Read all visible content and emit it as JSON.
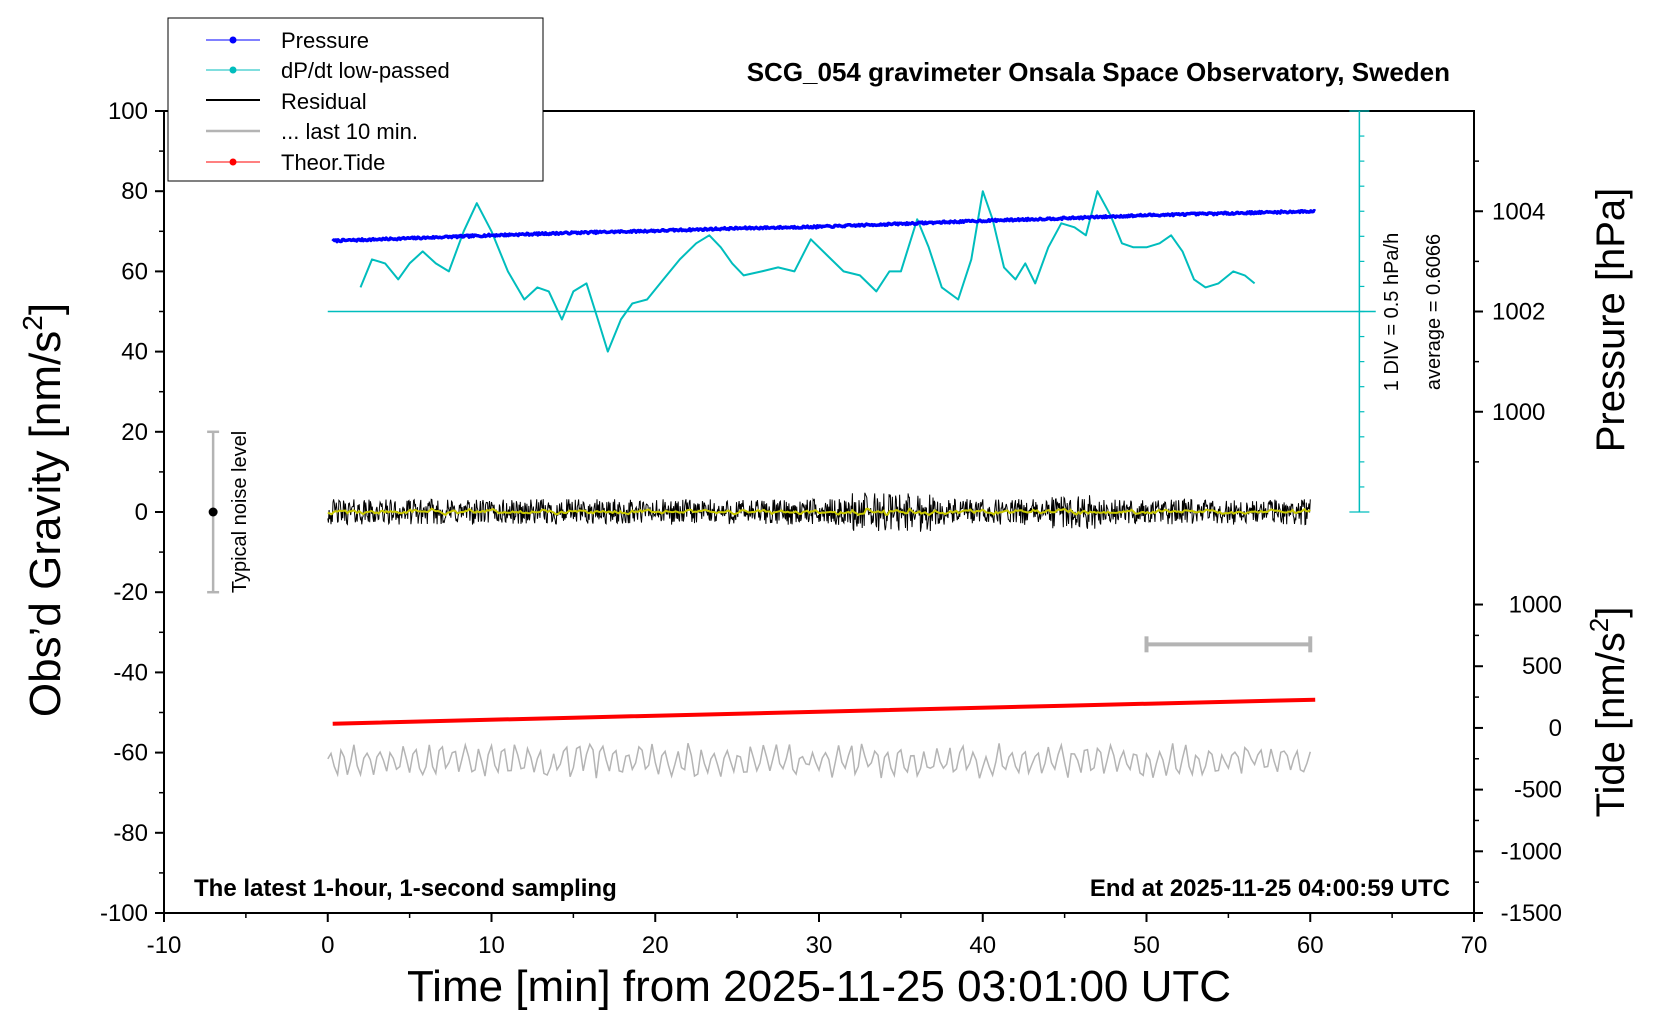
{
  "chart_data": {
    "type": "line",
    "title": "SCG_054 gravimeter Onsala Space Observatory, Sweden",
    "xlabel": "Time [min] from 2025-11-25 03:01:00 UTC",
    "ylabel_left_text": "Obs’d Gravity [nm/s",
    "ylabel_left_sup": "2",
    "ylabel_left_close": "]",
    "ylabel_pressure": "Pressure [hPa]",
    "ylabel_tide_text": "Tide [nm/s",
    "ylabel_tide_sup": "2",
    "ylabel_tide_close": "]",
    "xlim": [
      -10,
      70
    ],
    "ylim": [
      -100,
      100
    ],
    "x_ticks": [
      "-10",
      "0",
      "10",
      "20",
      "30",
      "40",
      "50",
      "60",
      "70"
    ],
    "y_ticks": [
      "100",
      "80",
      "60",
      "40",
      "20",
      "0",
      "-20",
      "-40",
      "-60",
      "-80",
      "-100"
    ],
    "pressure_ticks": [
      "1004",
      "1002",
      "1000"
    ],
    "tide_ticks": [
      "1000",
      "500",
      "0",
      "-500",
      "-1000",
      "-1500"
    ],
    "pressure_axis": {
      "value_at_gravity_100": 1006.0,
      "value_at_gravity_0": 998.0
    },
    "tide_axis": {
      "value_at_gravity_100": 5000,
      "value_at_gravity_-100": -1500
    },
    "legend": [
      "Pressure",
      "dP/dt low-passed",
      "Residual",
      "... last 10 min.",
      "Theor.Tide"
    ],
    "colors": {
      "pressure": "#0000ff",
      "dpdt": "#00bdbd",
      "residual": "#000000",
      "residual_smooth": "#c8c800",
      "last10": "#b4b4b4",
      "tide": "#ff0000"
    },
    "series": [
      {
        "name": "Pressure",
        "unit": "hPa",
        "x": [
          0.3,
          5,
          10,
          15,
          20,
          25,
          30,
          35,
          40,
          45,
          50,
          55,
          60.3
        ],
        "values": [
          1003.41,
          1003.46,
          1003.52,
          1003.57,
          1003.61,
          1003.66,
          1003.69,
          1003.75,
          1003.81,
          1003.86,
          1003.92,
          1003.96,
          1004.0
        ]
      },
      {
        "name": "dP/dt low-passed",
        "unit": "gravity-axis units (baseline 50)",
        "x": [
          2.0,
          2.7,
          3.5,
          4.3,
          5.0,
          5.8,
          6.6,
          7.4,
          8.3,
          9.1,
          10.0,
          11.0,
          12.0,
          12.8,
          13.5,
          14.3,
          15.0,
          15.8,
          16.5,
          17.1,
          17.9,
          18.6,
          19.5,
          20.5,
          21.5,
          22.5,
          23.3,
          24.0,
          24.7,
          25.4,
          26.5,
          27.5,
          28.5,
          29.5,
          30.5,
          31.5,
          32.5,
          33.5,
          34.3,
          35.0,
          36.0,
          36.7,
          37.5,
          38.5,
          39.3,
          40.0,
          40.6,
          41.3,
          42.0,
          42.6,
          43.2,
          44.0,
          44.8,
          45.6,
          46.3,
          47.0,
          47.8,
          48.5,
          49.2,
          50.0,
          50.8,
          51.5,
          52.2,
          52.9,
          53.6,
          54.4,
          55.3,
          56.0,
          56.6
        ],
        "values": [
          56,
          63,
          62,
          58,
          62,
          65,
          62,
          60,
          70,
          77,
          70,
          60,
          53,
          56,
          55,
          48,
          55,
          57,
          48,
          40,
          48,
          52,
          53,
          58,
          63,
          67,
          69,
          66,
          62,
          59,
          60,
          61,
          60,
          68,
          64,
          60,
          59,
          55,
          60,
          60,
          73,
          66,
          56,
          53,
          63,
          80,
          73,
          61,
          58,
          62,
          57,
          66,
          72,
          71,
          69,
          80,
          74,
          67,
          66,
          66,
          67,
          69,
          65,
          58,
          56,
          57,
          60,
          59,
          57
        ]
      },
      {
        "name": "Residual",
        "unit": "nm/s^2",
        "x_range": [
          0,
          60
        ],
        "note": "high-frequency noise around 0, amplitude about ±3 nm/s^2",
        "x": [
          0,
          10,
          20,
          30,
          34.5,
          40,
          45.5,
          50,
          60
        ],
        "values": [
          0,
          0,
          0,
          0,
          0,
          0,
          0,
          0,
          0
        ]
      },
      {
        "name": "... last 10 min.",
        "unit": "nm/s^2",
        "x": [
          50,
          60
        ],
        "values": [
          -33,
          -33
        ]
      },
      {
        "name": "Theor.Tide",
        "unit": "nm/s^2",
        "x": [
          0.3,
          15,
          30,
          45,
          60.3
        ],
        "values": [
          -52.8,
          -51.3,
          -49.8,
          -48.3,
          -46.8
        ]
      },
      {
        "name": "Gray trace (lower)",
        "unit": "gravity-axis units",
        "x_range": [
          0,
          60
        ],
        "note": "oscillating trace around -62, amplitude about ±4",
        "x": [
          0,
          60
        ],
        "values": [
          -62,
          -62
        ]
      }
    ],
    "dpdt_scale": {
      "label": "1 DIV = 0.5 hPa/h",
      "average": "average = 0.6066",
      "bar_x": 63,
      "range": [
        0,
        100
      ],
      "baseline": 50
    },
    "noise_bar": {
      "label": "Typical noise level",
      "x": -7,
      "center": 0,
      "range": [
        -20,
        20
      ]
    },
    "annotations": {
      "bottom_left": "The latest 1-hour, 1-second sampling",
      "bottom_right": "End at 2025-11-25 04:00:59 UTC"
    }
  }
}
